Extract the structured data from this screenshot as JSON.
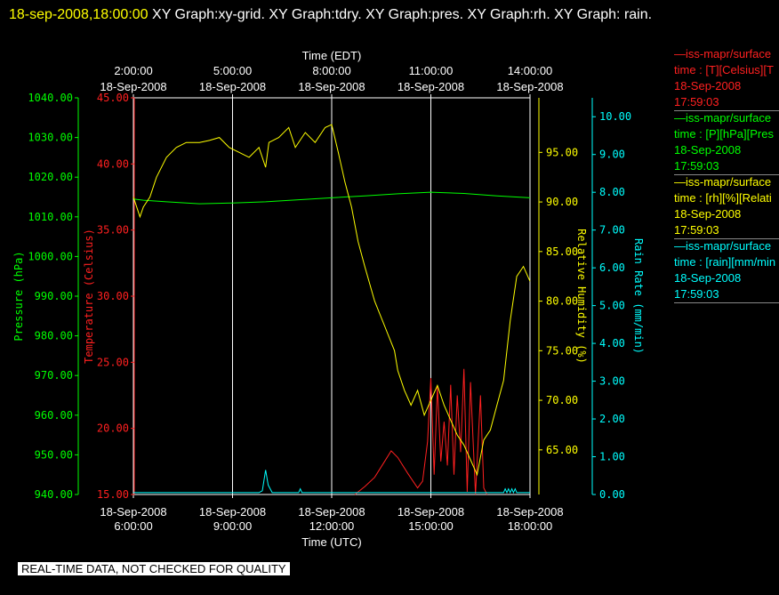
{
  "header": {
    "timestamp": "18-sep-2008,18:00:00",
    "title_rest": " XY Graph:xy-grid.  XY Graph:tdry.  XY Graph:pres.  XY Graph:rh.  XY Graph: rain."
  },
  "footer": {
    "text": "REAL-TIME DATA, NOT CHECKED FOR QUALITY"
  },
  "legend": [
    {
      "line1": "—iss-mapr/surface",
      "line2": "time : [T][Celsius][T",
      "line3": "18-Sep-2008",
      "line4": "17:59:03",
      "color": "#ff2020"
    },
    {
      "line1": "—iss-mapr/surface",
      "line2": "time : [P][hPa][Pres",
      "line3": "18-Sep-2008",
      "line4": "17:59:03",
      "color": "#00ff00"
    },
    {
      "line1": "—iss-mapr/surface",
      "line2": "time : [rh][%][Relati",
      "line3": "18-Sep-2008",
      "line4": "17:59:03",
      "color": "#ffff00"
    },
    {
      "line1": "—iss-mapr/surface",
      "line2": "time : [rain][mm/min",
      "line3": "18-Sep-2008",
      "line4": "17:59:03",
      "color": "#00ffff"
    }
  ],
  "chart_data": {
    "type": "line",
    "xlabel_top": "Time (EDT)",
    "xlabel_bottom": "Time (UTC)",
    "x_range": [
      6.0,
      18.0
    ],
    "grid": true,
    "top_ticks": [
      {
        "x": 6.0,
        "line1": "2:00:00",
        "line2": "18-Sep-2008"
      },
      {
        "x": 9.0,
        "line1": "5:00:00",
        "line2": "18-Sep-2008"
      },
      {
        "x": 12.0,
        "line1": "8:00:00",
        "line2": "18-Sep-2008"
      },
      {
        "x": 15.0,
        "line1": "11:00:00",
        "line2": "18-Sep-2008"
      },
      {
        "x": 18.0,
        "line1": "14:00:00",
        "line2": "18-Sep-2008"
      }
    ],
    "bottom_ticks": [
      {
        "x": 6.0,
        "line1": "18-Sep-2008",
        "line2": "6:00:00"
      },
      {
        "x": 9.0,
        "line1": "18-Sep-2008",
        "line2": "9:00:00"
      },
      {
        "x": 12.0,
        "line1": "18-Sep-2008",
        "line2": "12:00:00"
      },
      {
        "x": 15.0,
        "line1": "18-Sep-2008",
        "line2": "15:00:00"
      },
      {
        "x": 18.0,
        "line1": "18-Sep-2008",
        "line2": "18:00:00"
      }
    ],
    "axes": [
      {
        "id": "pres",
        "label": "Pressure (hPa)",
        "color": "#00ff00",
        "range": [
          940,
          1040
        ],
        "ticks": [
          "940.00",
          "950.00",
          "960.00",
          "970.00",
          "980.00",
          "990.00",
          "1000.00",
          "1010.00",
          "1020.00",
          "1030.00",
          "1040.00"
        ]
      },
      {
        "id": "temp",
        "label": "Temperature (Celsius)",
        "color": "#ff2020",
        "range": [
          15,
          45
        ],
        "ticks": [
          "15.00",
          "20.00",
          "25.00",
          "30.00",
          "35.00",
          "40.00",
          "45.00"
        ]
      },
      {
        "id": "rh",
        "label": "Relative Humidity (%)",
        "color": "#ffff00",
        "range": [
          60.5,
          100.5
        ],
        "ticks": [
          "65.00",
          "70.00",
          "75.00",
          "80.00",
          "85.00",
          "90.00",
          "95.00"
        ]
      },
      {
        "id": "rain",
        "label": "Rain Rate (mm/min)",
        "color": "#00ffff",
        "range": [
          0,
          10.5
        ],
        "ticks": [
          "0.00",
          "1.00",
          "2.00",
          "3.00",
          "4.00",
          "5.00",
          "6.00",
          "7.00",
          "8.00",
          "9.00",
          "10.00"
        ]
      }
    ],
    "series": [
      {
        "name": "pres",
        "axis": "pres",
        "color": "#00ff00",
        "points": [
          [
            6.0,
            1014.5
          ],
          [
            6.3,
            1014.2
          ],
          [
            7.0,
            1013.8
          ],
          [
            8.0,
            1013.3
          ],
          [
            9.0,
            1013.5
          ],
          [
            10.0,
            1013.8
          ],
          [
            11.0,
            1014.3
          ],
          [
            12.0,
            1014.8
          ],
          [
            13.0,
            1015.3
          ],
          [
            14.0,
            1015.8
          ],
          [
            15.0,
            1016.2
          ],
          [
            16.0,
            1015.9
          ],
          [
            17.0,
            1015.3
          ],
          [
            18.0,
            1014.8
          ]
        ]
      },
      {
        "name": "temp",
        "axis": "temp",
        "color": "#ff2020",
        "points": [
          [
            12.7,
            15.0
          ],
          [
            13.0,
            15.6
          ],
          [
            13.3,
            16.3
          ],
          [
            13.6,
            17.5
          ],
          [
            13.8,
            18.3
          ],
          [
            14.0,
            17.8
          ],
          [
            14.3,
            16.6
          ],
          [
            14.6,
            15.5
          ],
          [
            14.75,
            16.0
          ],
          [
            14.9,
            19.0
          ],
          [
            15.0,
            23.8
          ],
          [
            15.1,
            16.5
          ],
          [
            15.2,
            23.2
          ],
          [
            15.3,
            17.5
          ],
          [
            15.4,
            20.5
          ],
          [
            15.5,
            17.2
          ],
          [
            15.6,
            23.3
          ],
          [
            15.7,
            16.5
          ],
          [
            15.8,
            22.5
          ],
          [
            15.9,
            18.2
          ],
          [
            16.0,
            24.5
          ],
          [
            16.1,
            15.2
          ],
          [
            16.2,
            23.5
          ],
          [
            16.35,
            15.0
          ],
          [
            16.5,
            22.5
          ],
          [
            16.6,
            15.5
          ],
          [
            16.7,
            15.0
          ]
        ]
      },
      {
        "name": "rh",
        "axis": "rh",
        "color": "#ffff00",
        "points": [
          [
            6.0,
            90.5
          ],
          [
            6.1,
            89.5
          ],
          [
            6.2,
            88.5
          ],
          [
            6.3,
            89.5
          ],
          [
            6.5,
            90.5
          ],
          [
            6.7,
            92.5
          ],
          [
            7.0,
            94.5
          ],
          [
            7.3,
            95.5
          ],
          [
            7.6,
            96.0
          ],
          [
            8.0,
            96.0
          ],
          [
            8.3,
            96.2
          ],
          [
            8.6,
            96.5
          ],
          [
            8.9,
            95.5
          ],
          [
            9.2,
            95.0
          ],
          [
            9.5,
            94.5
          ],
          [
            9.8,
            95.5
          ],
          [
            10.0,
            93.5
          ],
          [
            10.1,
            96.0
          ],
          [
            10.4,
            96.5
          ],
          [
            10.7,
            97.5
          ],
          [
            10.9,
            95.5
          ],
          [
            11.2,
            97.0
          ],
          [
            11.5,
            96.0
          ],
          [
            11.8,
            97.5
          ],
          [
            12.0,
            97.8
          ],
          [
            12.2,
            95.0
          ],
          [
            12.4,
            92.0
          ],
          [
            12.6,
            89.5
          ],
          [
            12.8,
            86.0
          ],
          [
            13.0,
            83.5
          ],
          [
            13.3,
            80.0
          ],
          [
            13.6,
            77.5
          ],
          [
            13.9,
            75.0
          ],
          [
            14.0,
            73.0
          ],
          [
            14.2,
            71.0
          ],
          [
            14.4,
            69.5
          ],
          [
            14.6,
            71.0
          ],
          [
            14.8,
            68.5
          ],
          [
            15.0,
            70.0
          ],
          [
            15.2,
            71.5
          ],
          [
            15.4,
            69.5
          ],
          [
            15.6,
            68.0
          ],
          [
            15.8,
            66.5
          ],
          [
            16.0,
            65.5
          ],
          [
            16.2,
            64.0
          ],
          [
            16.4,
            62.5
          ],
          [
            16.6,
            66.0
          ],
          [
            16.8,
            67.0
          ],
          [
            17.0,
            69.5
          ],
          [
            17.2,
            72.0
          ],
          [
            17.4,
            78.0
          ],
          [
            17.6,
            82.5
          ],
          [
            17.8,
            83.5
          ],
          [
            18.0,
            82.0
          ]
        ]
      },
      {
        "name": "rain",
        "axis": "rain",
        "color": "#00ffff",
        "points": [
          [
            6.0,
            0.05
          ],
          [
            9.8,
            0.05
          ],
          [
            9.9,
            0.1
          ],
          [
            10.0,
            0.65
          ],
          [
            10.08,
            0.25
          ],
          [
            10.2,
            0.05
          ],
          [
            11.0,
            0.05
          ],
          [
            11.05,
            0.15
          ],
          [
            11.1,
            0.05
          ],
          [
            17.2,
            0.05
          ],
          [
            17.25,
            0.15
          ],
          [
            17.3,
            0.05
          ],
          [
            17.35,
            0.15
          ],
          [
            17.4,
            0.05
          ],
          [
            17.45,
            0.15
          ],
          [
            17.5,
            0.05
          ],
          [
            17.55,
            0.15
          ],
          [
            17.6,
            0.05
          ],
          [
            18.0,
            0.05
          ]
        ]
      }
    ]
  }
}
